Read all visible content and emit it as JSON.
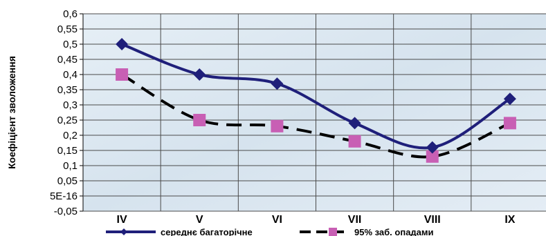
{
  "chart_data": {
    "type": "line",
    "ylabel": "Коефіцієнт зволоження",
    "categories": [
      "IV",
      "V",
      "VI",
      "VII",
      "VIII",
      "IX"
    ],
    "y_ticks": [
      "-0,05",
      "5E-16",
      "0,05",
      "0,1",
      "0,15",
      "0,2",
      "0,25",
      "0,3",
      "0,35",
      "0,4",
      "0,45",
      "0,5",
      "0,55",
      "0,6"
    ],
    "ylim": [
      -0.05,
      0.6
    ],
    "grid": true,
    "legend_position": "bottom",
    "series": [
      {
        "name": "середнє багаторічне",
        "values": [
          0.5,
          0.4,
          0.37,
          0.24,
          0.16,
          0.32
        ],
        "color": "#1f1f7a",
        "line_style": "solid",
        "marker": "diamond",
        "marker_color": "#1f1f7a"
      },
      {
        "name": "95% заб. опадами",
        "values": [
          0.4,
          0.25,
          0.23,
          0.18,
          0.13,
          0.24
        ],
        "color": "#000000",
        "line_style": "dashed",
        "marker": "square",
        "marker_color": "#c85fb4"
      }
    ],
    "plot_background": "#dfeaf3"
  }
}
